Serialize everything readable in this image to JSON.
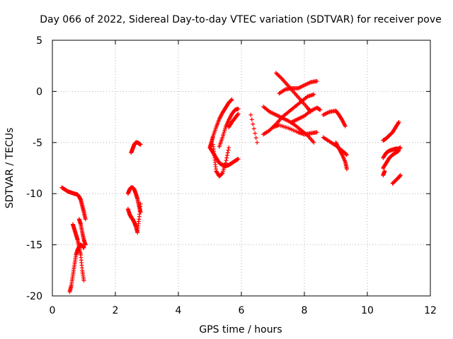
{
  "chart_data": {
    "type": "scatter",
    "title": "Day 066 of 2022, Sidereal Day-to-day VTEC variation (SDTVAR) for receiver pove",
    "xlabel": "GPS time / hours",
    "ylabel": "SDTVAR / TECUs",
    "xlim": [
      0,
      12
    ],
    "ylim": [
      -20,
      5
    ],
    "xticks": [
      0,
      2,
      4,
      6,
      8,
      10,
      12
    ],
    "yticks": [
      5,
      0,
      -5,
      -10,
      -15,
      -20
    ],
    "grid": true,
    "marker": "+",
    "color": "#ff0000",
    "series": [
      {
        "name": "seg1",
        "x": [
          0.3,
          0.4,
          0.5,
          0.6,
          0.7,
          0.8,
          0.85,
          0.9,
          0.95,
          1.0,
          1.05
        ],
        "y": [
          -9.4,
          -9.6,
          -9.8,
          -9.9,
          -10.0,
          -10.1,
          -10.3,
          -10.6,
          -11.2,
          -11.8,
          -12.5
        ]
      },
      {
        "name": "seg2",
        "x": [
          0.55,
          0.6,
          0.65,
          0.7,
          0.75,
          0.8,
          0.85,
          0.9,
          0.95,
          1.0
        ],
        "y": [
          -19.6,
          -19.0,
          -18.0,
          -17.0,
          -16.0,
          -15.5,
          -15.2,
          -15.0,
          -15.1,
          -15.3
        ]
      },
      {
        "name": "seg3",
        "x": [
          0.65,
          0.7,
          0.75,
          0.8,
          0.85,
          0.9,
          0.95,
          1.0
        ],
        "y": [
          -13.0,
          -13.5,
          -14.0,
          -14.5,
          -15.2,
          -16.0,
          -17.5,
          -18.5
        ]
      },
      {
        "name": "seg4",
        "x": [
          0.85,
          0.9,
          0.95,
          1.0,
          1.05
        ],
        "y": [
          -12.5,
          -13.0,
          -13.8,
          -14.5,
          -15.0
        ]
      },
      {
        "name": "seg5",
        "x": [
          2.4,
          2.45,
          2.5,
          2.55,
          2.6,
          2.65,
          2.7,
          2.75,
          2.8
        ],
        "y": [
          -10.0,
          -9.6,
          -9.4,
          -9.4,
          -9.6,
          -10.0,
          -10.5,
          -11.2,
          -11.8
        ]
      },
      {
        "name": "seg6",
        "x": [
          2.4,
          2.45,
          2.5,
          2.55,
          2.6,
          2.65,
          2.7,
          2.75,
          2.8
        ],
        "y": [
          -11.5,
          -12.0,
          -12.3,
          -12.5,
          -12.8,
          -13.2,
          -13.8,
          -12.5,
          -11.0
        ]
      },
      {
        "name": "seg7",
        "x": [
          2.5,
          2.55,
          2.6,
          2.65,
          2.7,
          2.75,
          2.8
        ],
        "y": [
          -6.0,
          -5.6,
          -5.2,
          -5.0,
          -5.0,
          -5.1,
          -5.2
        ]
      },
      {
        "name": "seg8",
        "x": [
          5.0,
          5.05,
          5.1,
          5.2,
          5.3,
          5.4,
          5.5,
          5.6,
          5.7
        ],
        "y": [
          -5.5,
          -5.0,
          -4.4,
          -3.5,
          -2.7,
          -2.1,
          -1.6,
          -1.1,
          -0.8
        ]
      },
      {
        "name": "seg9",
        "x": [
          5.0,
          5.1,
          5.2,
          5.3,
          5.4,
          5.5,
          5.6,
          5.7,
          5.8,
          5.9
        ],
        "y": [
          -5.5,
          -6.0,
          -6.5,
          -7.0,
          -7.2,
          -7.3,
          -7.2,
          -7.0,
          -6.8,
          -6.6
        ]
      },
      {
        "name": "seg10",
        "x": [
          5.1,
          5.15,
          5.2,
          5.3,
          5.4,
          5.5,
          5.6
        ],
        "y": [
          -5.2,
          -6.5,
          -7.8,
          -8.3,
          -8.0,
          -7.0,
          -5.5
        ]
      },
      {
        "name": "seg11",
        "x": [
          5.3,
          5.4,
          5.5,
          5.6,
          5.7,
          5.8,
          5.9
        ],
        "y": [
          -5.4,
          -4.5,
          -3.5,
          -2.8,
          -2.2,
          -1.8,
          -1.7
        ]
      },
      {
        "name": "seg12",
        "x": [
          5.6,
          5.7,
          5.8,
          5.9
        ],
        "y": [
          -3.5,
          -3.0,
          -2.6,
          -2.2
        ]
      },
      {
        "name": "seg13",
        "x": [
          6.3,
          6.5
        ],
        "y": [
          -2.3,
          -5.0
        ]
      },
      {
        "name": "seg14",
        "x": [
          6.7,
          6.9,
          7.1,
          7.3,
          7.5,
          7.7,
          7.9,
          8.1,
          8.3
        ],
        "y": [
          -4.2,
          -3.8,
          -3.2,
          -2.5,
          -2.0,
          -1.5,
          -1.0,
          -0.5,
          -0.3
        ]
      },
      {
        "name": "seg15",
        "x": [
          6.7,
          6.9,
          7.1,
          7.3,
          7.5,
          7.7,
          7.9,
          8.1,
          8.3
        ],
        "y": [
          -1.5,
          -2.0,
          -2.3,
          -2.6,
          -2.9,
          -3.3,
          -3.8,
          -4.3,
          -5.0
        ]
      },
      {
        "name": "seg16",
        "x": [
          7.1,
          7.3,
          7.5,
          7.7,
          7.9,
          8.1,
          8.2
        ],
        "y": [
          1.8,
          1.2,
          0.5,
          -0.2,
          -0.9,
          -1.6,
          -2.0
        ]
      },
      {
        "name": "seg17",
        "x": [
          7.2,
          7.4,
          7.6,
          7.8,
          8.0,
          8.2,
          8.4
        ],
        "y": [
          -0.2,
          0.2,
          0.3,
          0.3,
          0.6,
          0.9,
          1.0
        ]
      },
      {
        "name": "seg18",
        "x": [
          7.0,
          7.2,
          7.5,
          7.8,
          8.0,
          8.2,
          8.4
        ],
        "y": [
          -3.5,
          -3.3,
          -3.6,
          -4.0,
          -4.2,
          -4.1,
          -4.0
        ]
      },
      {
        "name": "seg19",
        "x": [
          7.6,
          7.8,
          8.0,
          8.2,
          8.4,
          8.5
        ],
        "y": [
          -3.0,
          -2.7,
          -2.4,
          -1.9,
          -1.6,
          -1.8
        ]
      },
      {
        "name": "seg20",
        "x": [
          8.6,
          8.8,
          9.0,
          9.2,
          9.35
        ],
        "y": [
          -4.5,
          -4.9,
          -5.3,
          -5.8,
          -6.2
        ]
      },
      {
        "name": "seg21",
        "x": [
          8.6,
          8.8,
          9.0,
          9.1,
          9.2,
          9.3
        ],
        "y": [
          -2.3,
          -2.0,
          -1.9,
          -2.3,
          -2.8,
          -3.4
        ]
      },
      {
        "name": "seg22",
        "x": [
          9.0,
          9.1,
          9.2,
          9.3,
          9.35
        ],
        "y": [
          -5.0,
          -5.6,
          -6.2,
          -6.9,
          -7.6
        ]
      },
      {
        "name": "seg23",
        "x": [
          10.5,
          10.6,
          10.7,
          10.8,
          10.9,
          11.0
        ],
        "y": [
          -4.8,
          -4.6,
          -4.3,
          -4.0,
          -3.5,
          -3.0
        ]
      },
      {
        "name": "seg24",
        "x": [
          10.5,
          10.6,
          10.7,
          10.8,
          10.9,
          11.0,
          11.05
        ],
        "y": [
          -6.5,
          -6.0,
          -5.8,
          -5.7,
          -5.6,
          -5.6,
          -5.5
        ]
      },
      {
        "name": "seg25",
        "x": [
          10.5,
          10.6,
          10.7,
          10.8,
          10.9,
          11.0
        ],
        "y": [
          -7.5,
          -7.0,
          -6.5,
          -6.2,
          -6.0,
          -5.8
        ]
      },
      {
        "name": "seg26",
        "x": [
          10.5,
          10.55
        ],
        "y": [
          -8.2,
          -7.8
        ]
      },
      {
        "name": "seg27",
        "x": [
          10.8,
          10.9,
          11.0,
          11.05
        ],
        "y": [
          -9.0,
          -8.7,
          -8.4,
          -8.2
        ]
      }
    ]
  }
}
